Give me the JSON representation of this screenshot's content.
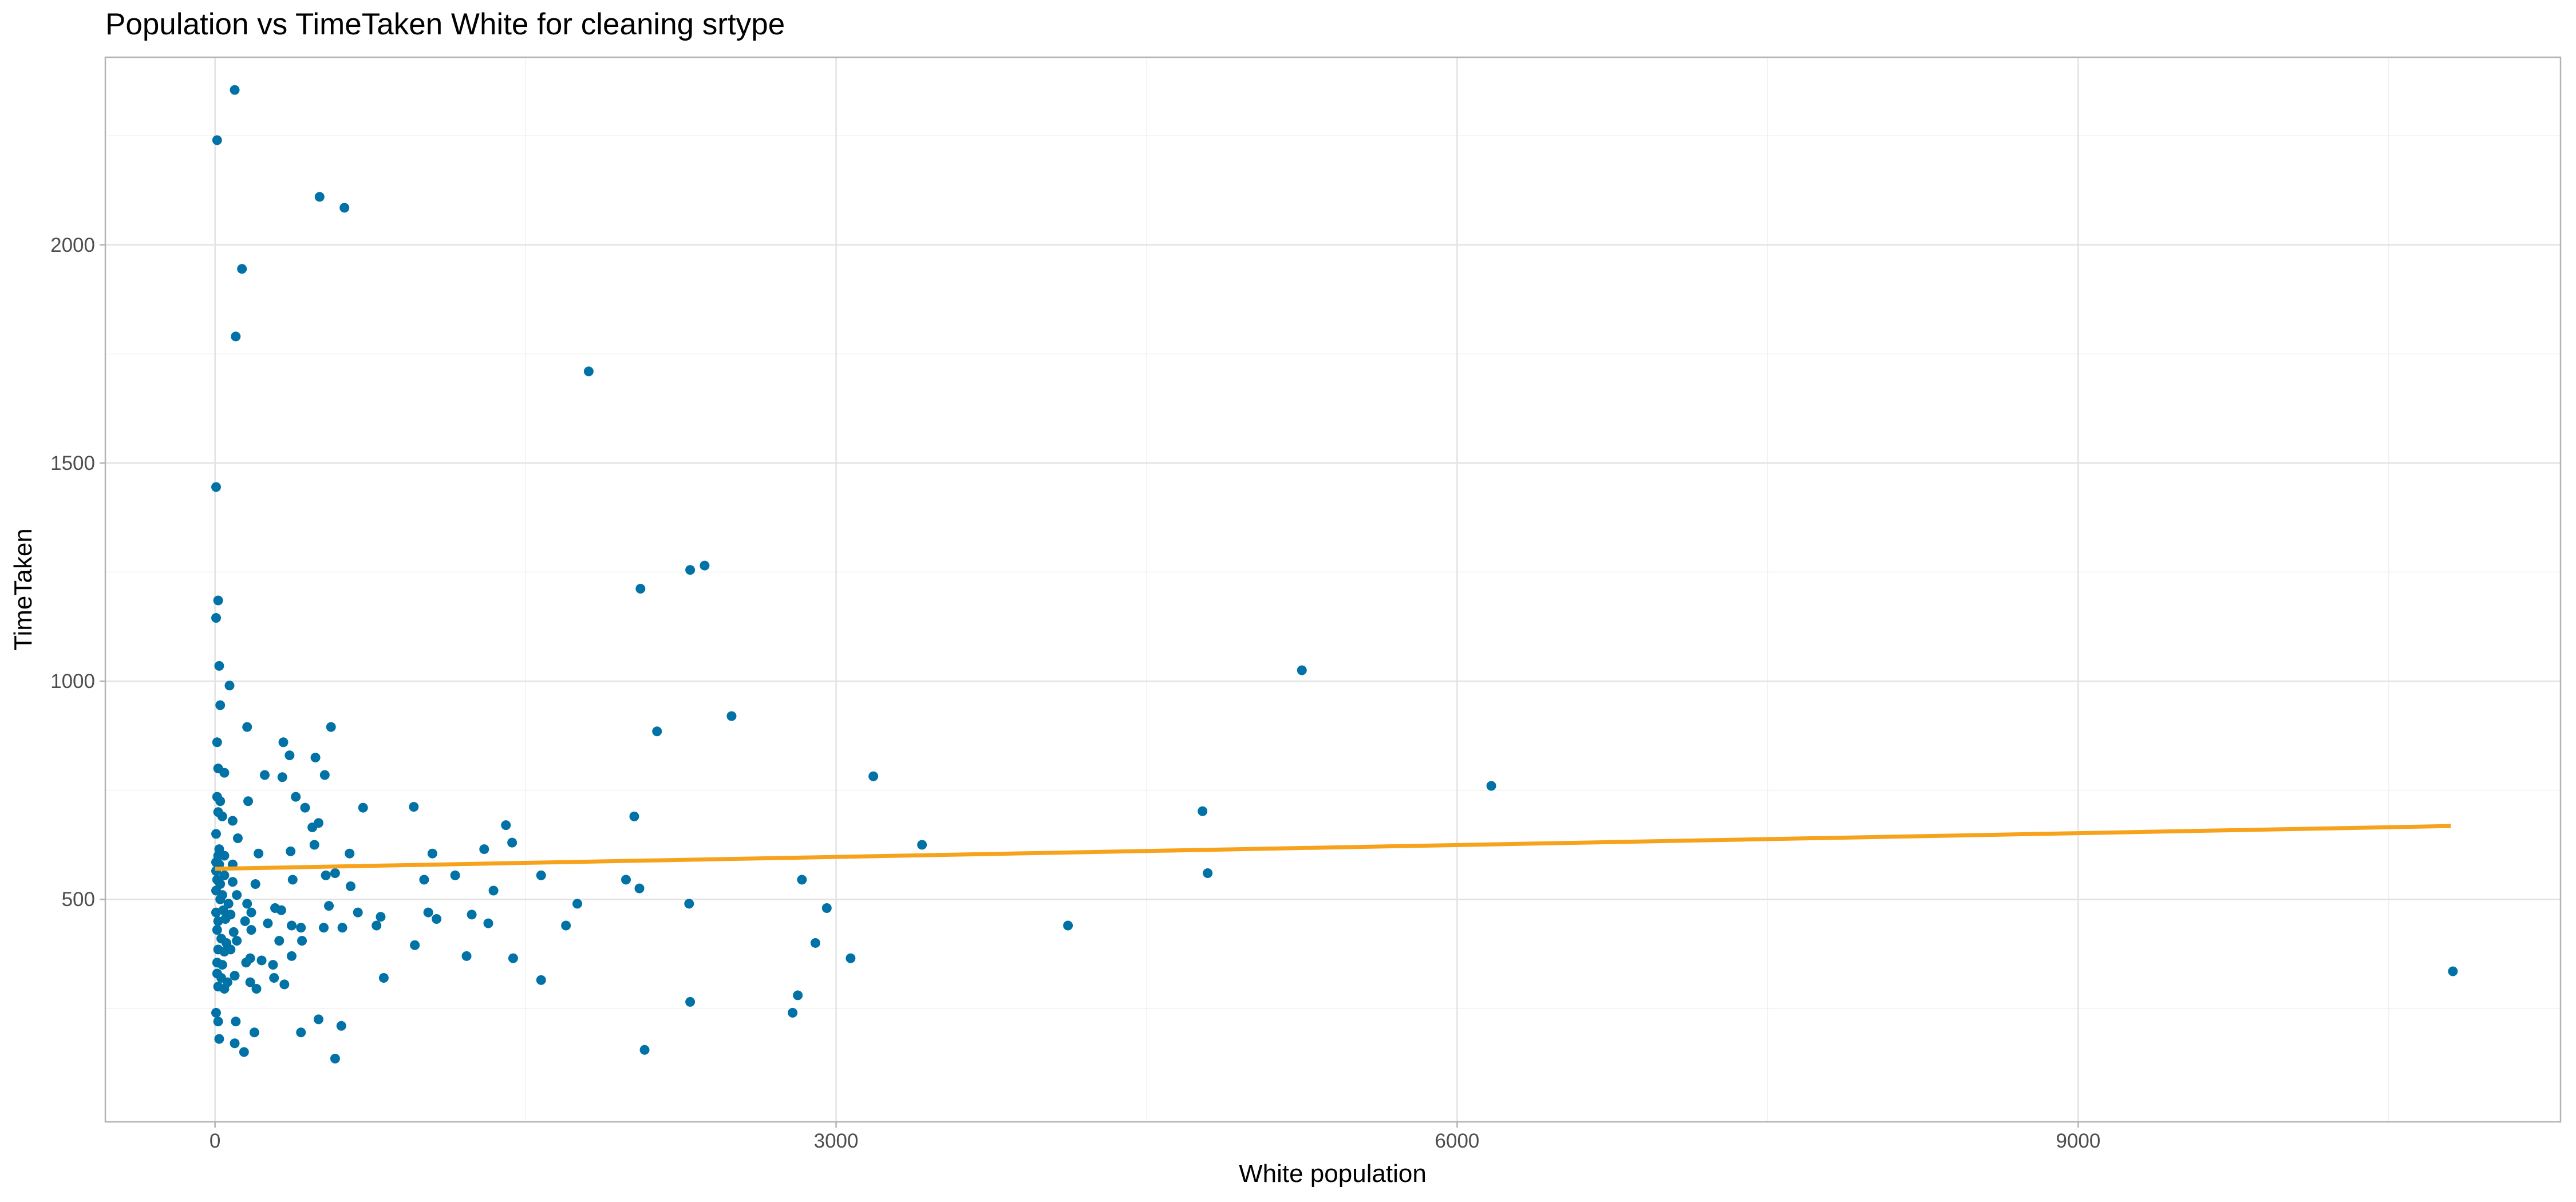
{
  "chart_data": {
    "type": "scatter",
    "title": "Population vs TimeTaken White for cleaning srtype",
    "xlabel": "White population",
    "ylabel": "TimeTaken",
    "xlim": [
      -530,
      11330
    ],
    "ylim": [
      -10,
      2430
    ],
    "x_ticks": [
      0,
      3000,
      6000,
      9000
    ],
    "x_tick_labels": [
      "0",
      "3000",
      "6000",
      "9000"
    ],
    "x_minor_ticks": [
      1500,
      4500,
      7500,
      10500
    ],
    "y_ticks": [
      500,
      1000,
      1500,
      2000
    ],
    "y_tick_labels": [
      "500",
      "1000",
      "1500",
      "2000"
    ],
    "y_minor_ticks": [
      250,
      750,
      1250,
      1750,
      2250
    ],
    "grid": true,
    "point_color": "#0072a6",
    "line_color": "#f7a21b",
    "trend_line": {
      "x": [
        0,
        10800
      ],
      "y": [
        570,
        668
      ]
    },
    "points": [
      [
        95,
        2355
      ],
      [
        10,
        2240
      ],
      [
        505,
        2110
      ],
      [
        625,
        2085
      ],
      [
        130,
        1945
      ],
      [
        100,
        1790
      ],
      [
        1805,
        1710
      ],
      [
        5,
        1445
      ],
      [
        2365,
        1265
      ],
      [
        2295,
        1255
      ],
      [
        2055,
        1212
      ],
      [
        15,
        1185
      ],
      [
        5,
        1145
      ],
      [
        5250,
        1025
      ],
      [
        20,
        1035
      ],
      [
        70,
        990
      ],
      [
        25,
        945
      ],
      [
        2495,
        920
      ],
      [
        155,
        895
      ],
      [
        560,
        895
      ],
      [
        2135,
        885
      ],
      [
        10,
        860
      ],
      [
        330,
        860
      ],
      [
        360,
        830
      ],
      [
        485,
        825
      ],
      [
        15,
        800
      ],
      [
        45,
        790
      ],
      [
        240,
        785
      ],
      [
        325,
        780
      ],
      [
        3180,
        782
      ],
      [
        530,
        785
      ],
      [
        6165,
        760
      ],
      [
        10,
        735
      ],
      [
        25,
        725
      ],
      [
        160,
        725
      ],
      [
        390,
        735
      ],
      [
        435,
        710
      ],
      [
        715,
        710
      ],
      [
        960,
        712
      ],
      [
        4770,
        702
      ],
      [
        15,
        700
      ],
      [
        35,
        690
      ],
      [
        2025,
        690
      ],
      [
        85,
        680
      ],
      [
        500,
        675
      ],
      [
        1405,
        670
      ],
      [
        470,
        665
      ],
      [
        5,
        650
      ],
      [
        110,
        640
      ],
      [
        480,
        625
      ],
      [
        1435,
        630
      ],
      [
        3415,
        625
      ],
      [
        20,
        615
      ],
      [
        15,
        600
      ],
      [
        45,
        600
      ],
      [
        365,
        610
      ],
      [
        1300,
        615
      ],
      [
        1050,
        605
      ],
      [
        650,
        605
      ],
      [
        210,
        605
      ],
      [
        5,
        585
      ],
      [
        20,
        580
      ],
      [
        85,
        580
      ],
      [
        5,
        565
      ],
      [
        45,
        555
      ],
      [
        580,
        560
      ],
      [
        4795,
        560
      ],
      [
        1575,
        555
      ],
      [
        535,
        555
      ],
      [
        1160,
        555
      ],
      [
        10,
        545
      ],
      [
        375,
        545
      ],
      [
        1010,
        545
      ],
      [
        1985,
        545
      ],
      [
        2835,
        545
      ],
      [
        25,
        535
      ],
      [
        195,
        535
      ],
      [
        85,
        540
      ],
      [
        5,
        520
      ],
      [
        35,
        510
      ],
      [
        105,
        510
      ],
      [
        655,
        530
      ],
      [
        1345,
        520
      ],
      [
        2050,
        525
      ],
      [
        25,
        500
      ],
      [
        65,
        490
      ],
      [
        155,
        490
      ],
      [
        550,
        485
      ],
      [
        290,
        480
      ],
      [
        1750,
        490
      ],
      [
        2290,
        490
      ],
      [
        2955,
        480
      ],
      [
        5,
        470
      ],
      [
        40,
        475
      ],
      [
        75,
        465
      ],
      [
        175,
        470
      ],
      [
        320,
        475
      ],
      [
        690,
        470
      ],
      [
        800,
        460
      ],
      [
        1030,
        470
      ],
      [
        1240,
        465
      ],
      [
        15,
        450
      ],
      [
        50,
        455
      ],
      [
        145,
        450
      ],
      [
        255,
        445
      ],
      [
        370,
        440
      ],
      [
        525,
        435
      ],
      [
        780,
        440
      ],
      [
        1070,
        455
      ],
      [
        1320,
        445
      ],
      [
        1695,
        440
      ],
      [
        4120,
        440
      ],
      [
        10,
        430
      ],
      [
        90,
        425
      ],
      [
        175,
        430
      ],
      [
        415,
        435
      ],
      [
        615,
        435
      ],
      [
        30,
        410
      ],
      [
        55,
        400
      ],
      [
        105,
        405
      ],
      [
        310,
        405
      ],
      [
        420,
        405
      ],
      [
        965,
        395
      ],
      [
        2900,
        400
      ],
      [
        15,
        385
      ],
      [
        45,
        380
      ],
      [
        75,
        385
      ],
      [
        170,
        365
      ],
      [
        225,
        360
      ],
      [
        370,
        370
      ],
      [
        1215,
        370
      ],
      [
        1440,
        365
      ],
      [
        3070,
        365
      ],
      [
        10,
        355
      ],
      [
        35,
        350
      ],
      [
        150,
        355
      ],
      [
        280,
        350
      ],
      [
        815,
        320
      ],
      [
        1575,
        315
      ],
      [
        10,
        330
      ],
      [
        30,
        320
      ],
      [
        95,
        325
      ],
      [
        170,
        310
      ],
      [
        285,
        320
      ],
      [
        335,
        305
      ],
      [
        10810,
        335
      ],
      [
        15,
        300
      ],
      [
        45,
        295
      ],
      [
        200,
        295
      ],
      [
        60,
        310
      ],
      [
        2815,
        280
      ],
      [
        2295,
        265
      ],
      [
        5,
        240
      ],
      [
        15,
        220
      ],
      [
        100,
        220
      ],
      [
        500,
        225
      ],
      [
        610,
        210
      ],
      [
        415,
        195
      ],
      [
        2790,
        240
      ],
      [
        190,
        195
      ],
      [
        20,
        180
      ],
      [
        95,
        170
      ],
      [
        140,
        150
      ],
      [
        2075,
        155
      ],
      [
        580,
        135
      ]
    ]
  }
}
